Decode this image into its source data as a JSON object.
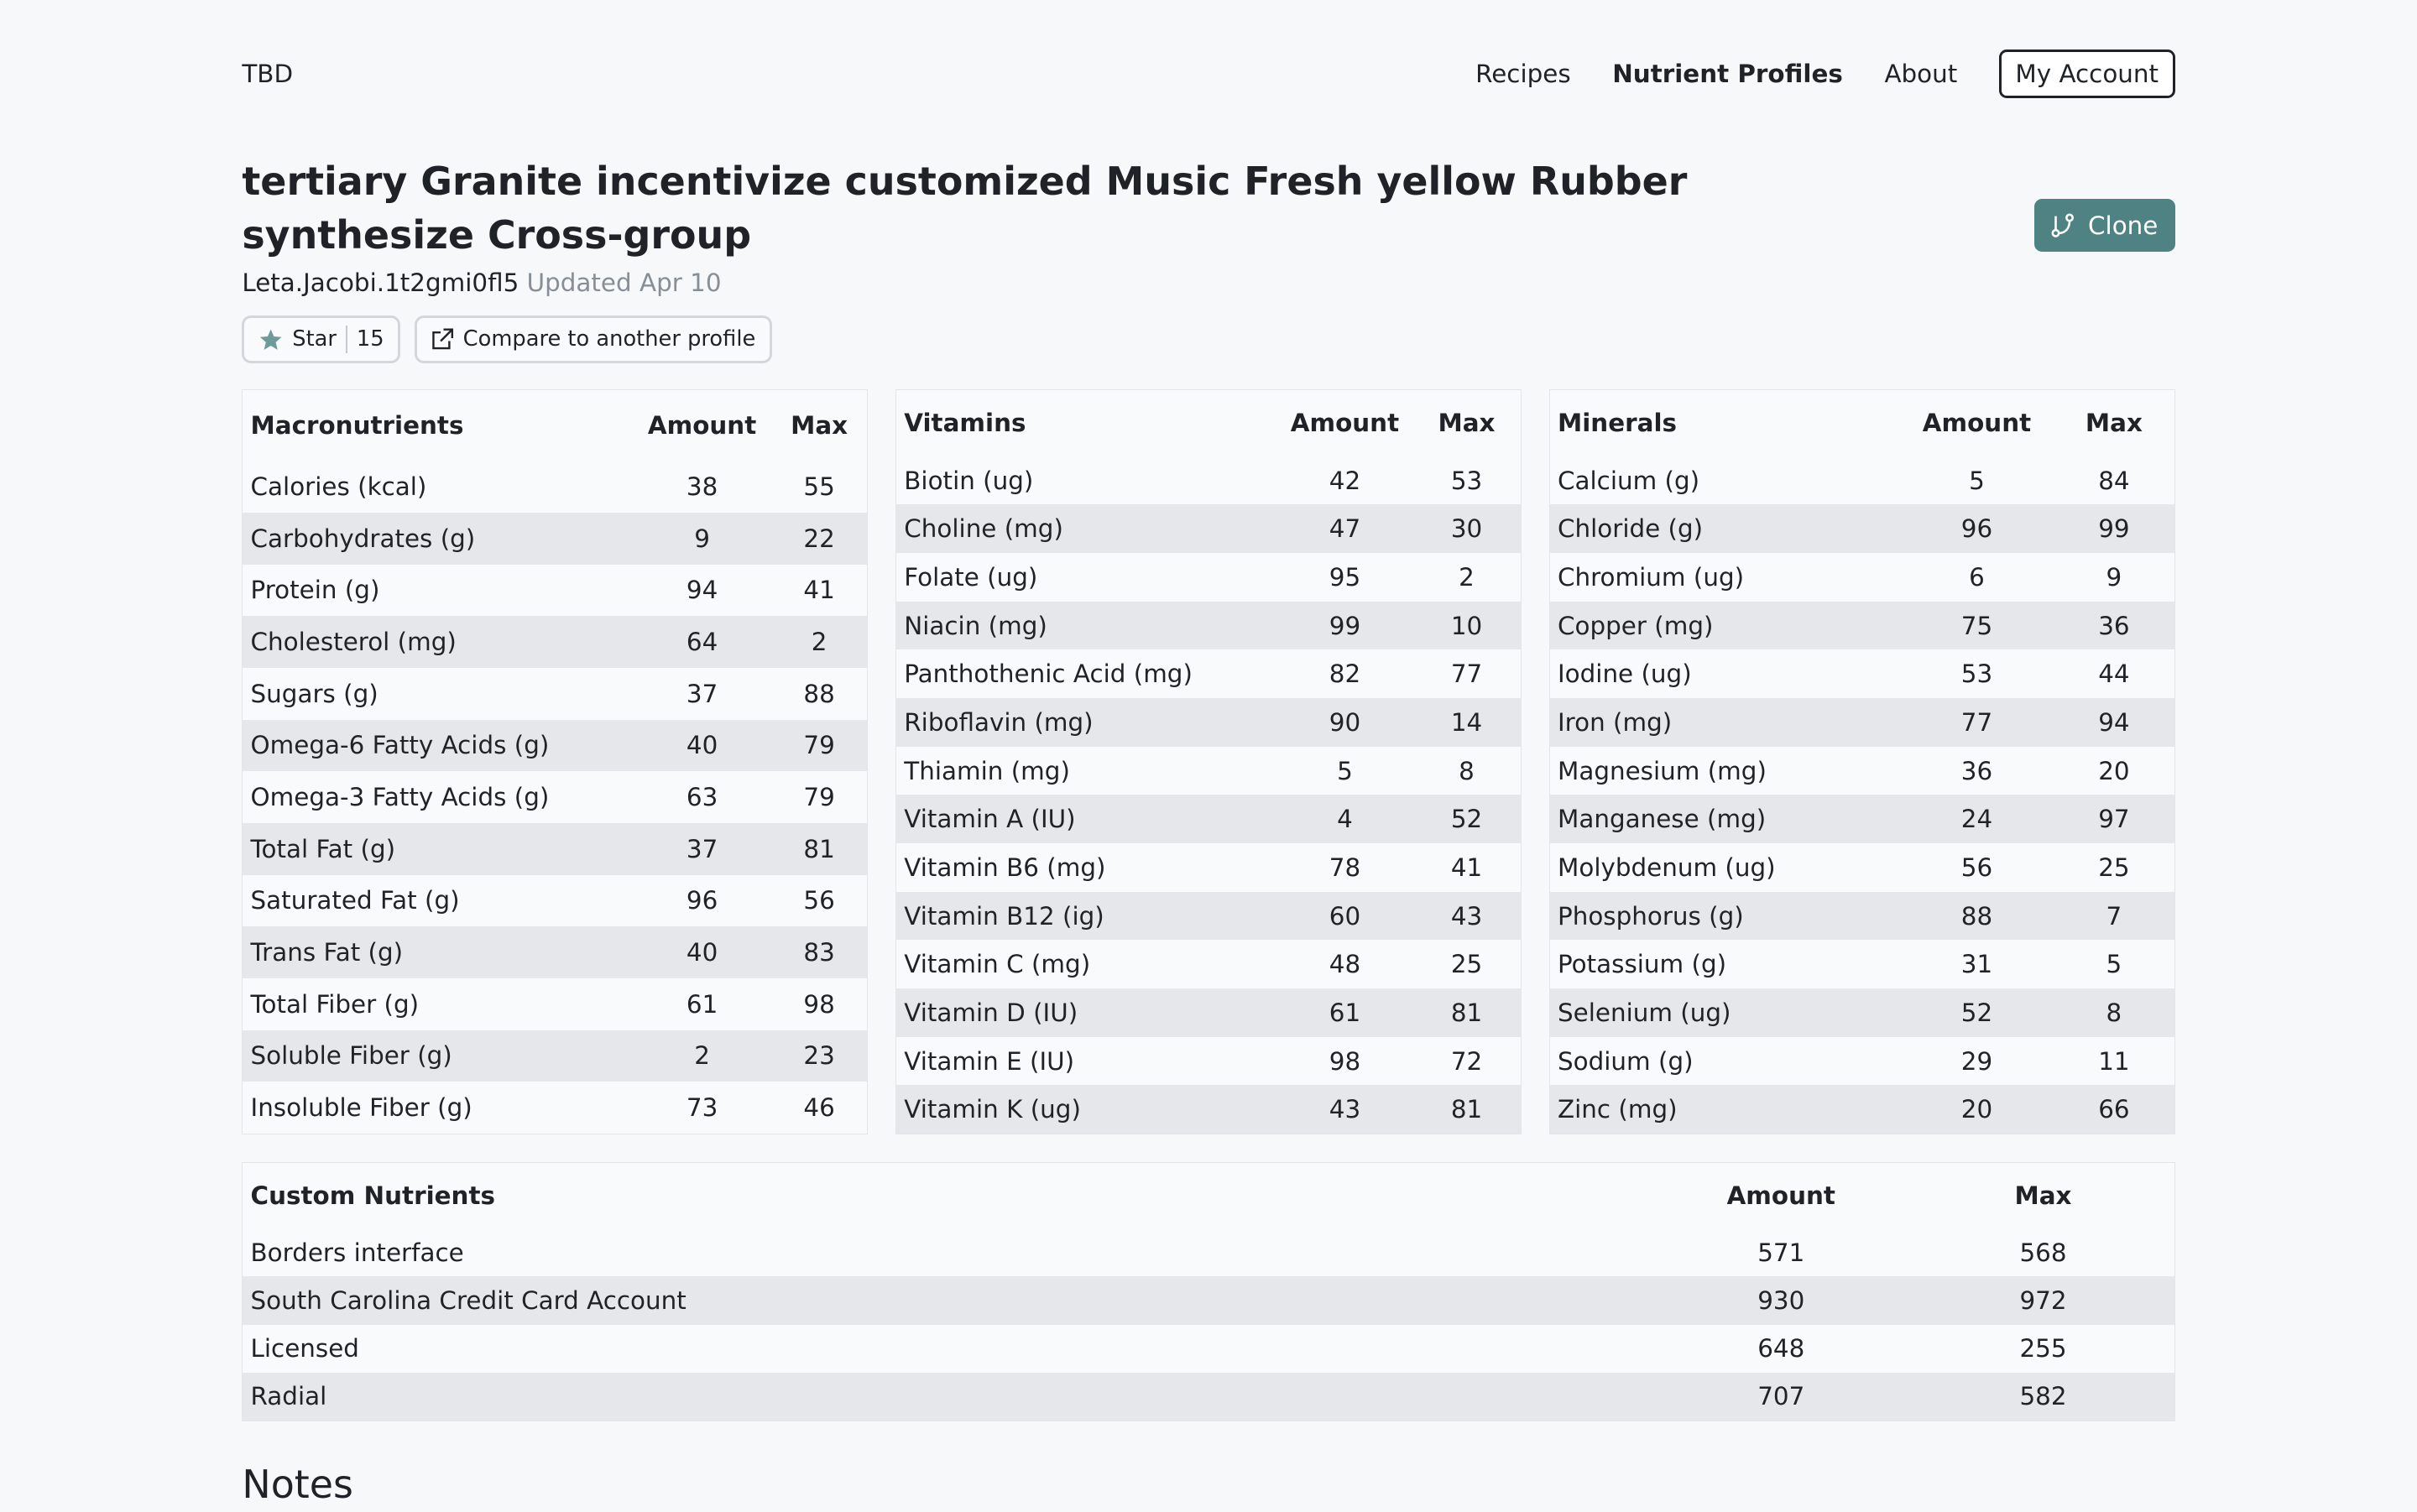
{
  "nav": {
    "brand": "TBD",
    "links": [
      "Recipes",
      "Nutrient Profiles",
      "About"
    ],
    "account": "My Account"
  },
  "profile": {
    "title": "tertiary Granite incentivize customized Music Fresh yellow Rubber synthesize Cross-group",
    "author": "Leta.Jacobi.1t2gmi0fl5",
    "updated": "Updated Apr 10",
    "star_label": "Star",
    "star_count": "15",
    "compare_label": "Compare to another profile",
    "clone_label": "Clone"
  },
  "colors": {
    "accent": "#4f8383",
    "background": "#f7f8fa",
    "stripe": "#e6e7ea"
  },
  "macronutrients": {
    "headers": [
      "Macronutrients",
      "Amount",
      "Max"
    ],
    "rows": [
      [
        "Calories (kcal)",
        "38",
        "55"
      ],
      [
        "Carbohydrates (g)",
        "9",
        "22"
      ],
      [
        "Protein (g)",
        "94",
        "41"
      ],
      [
        "Cholesterol (mg)",
        "64",
        "2"
      ],
      [
        "Sugars (g)",
        "37",
        "88"
      ],
      [
        "Omega-6 Fatty Acids (g)",
        "40",
        "79"
      ],
      [
        "Omega-3 Fatty Acids (g)",
        "63",
        "79"
      ],
      [
        "Total Fat (g)",
        "37",
        "81"
      ],
      [
        "Saturated Fat (g)",
        "96",
        "56"
      ],
      [
        "Trans Fat (g)",
        "40",
        "83"
      ],
      [
        "Total Fiber (g)",
        "61",
        "98"
      ],
      [
        "Soluble Fiber (g)",
        "2",
        "23"
      ],
      [
        "Insoluble Fiber (g)",
        "73",
        "46"
      ]
    ]
  },
  "vitamins": {
    "headers": [
      "Vitamins",
      "Amount",
      "Max"
    ],
    "rows": [
      [
        "Biotin (ug)",
        "42",
        "53"
      ],
      [
        "Choline (mg)",
        "47",
        "30"
      ],
      [
        "Folate (ug)",
        "95",
        "2"
      ],
      [
        "Niacin (mg)",
        "99",
        "10"
      ],
      [
        "Panthothenic Acid (mg)",
        "82",
        "77"
      ],
      [
        "Riboflavin (mg)",
        "90",
        "14"
      ],
      [
        "Thiamin (mg)",
        "5",
        "8"
      ],
      [
        "Vitamin A (IU)",
        "4",
        "52"
      ],
      [
        "Vitamin B6 (mg)",
        "78",
        "41"
      ],
      [
        "Vitamin B12 (ig)",
        "60",
        "43"
      ],
      [
        "Vitamin C (mg)",
        "48",
        "25"
      ],
      [
        "Vitamin D (IU)",
        "61",
        "81"
      ],
      [
        "Vitamin E (IU)",
        "98",
        "72"
      ],
      [
        "Vitamin K (ug)",
        "43",
        "81"
      ]
    ]
  },
  "minerals": {
    "headers": [
      "Minerals",
      "Amount",
      "Max"
    ],
    "rows": [
      [
        "Calcium (g)",
        "5",
        "84"
      ],
      [
        "Chloride (g)",
        "96",
        "99"
      ],
      [
        "Chromium (ug)",
        "6",
        "9"
      ],
      [
        "Copper (mg)",
        "75",
        "36"
      ],
      [
        "Iodine (ug)",
        "53",
        "44"
      ],
      [
        "Iron (mg)",
        "77",
        "94"
      ],
      [
        "Magnesium (mg)",
        "36",
        "20"
      ],
      [
        "Manganese (mg)",
        "24",
        "97"
      ],
      [
        "Molybdenum (ug)",
        "56",
        "25"
      ],
      [
        "Phosphorus (g)",
        "88",
        "7"
      ],
      [
        "Potassium (g)",
        "31",
        "5"
      ],
      [
        "Selenium (ug)",
        "52",
        "8"
      ],
      [
        "Sodium (g)",
        "29",
        "11"
      ],
      [
        "Zinc (mg)",
        "20",
        "66"
      ]
    ]
  },
  "custom": {
    "headers": [
      "Custom Nutrients",
      "Amount",
      "Max"
    ],
    "rows": [
      [
        "Borders interface",
        "571",
        "568"
      ],
      [
        "South Carolina Credit Card Account",
        "930",
        "972"
      ],
      [
        "Licensed",
        "648",
        "255"
      ],
      [
        "Radial",
        "707",
        "582"
      ]
    ]
  },
  "notes_heading": "Notes"
}
